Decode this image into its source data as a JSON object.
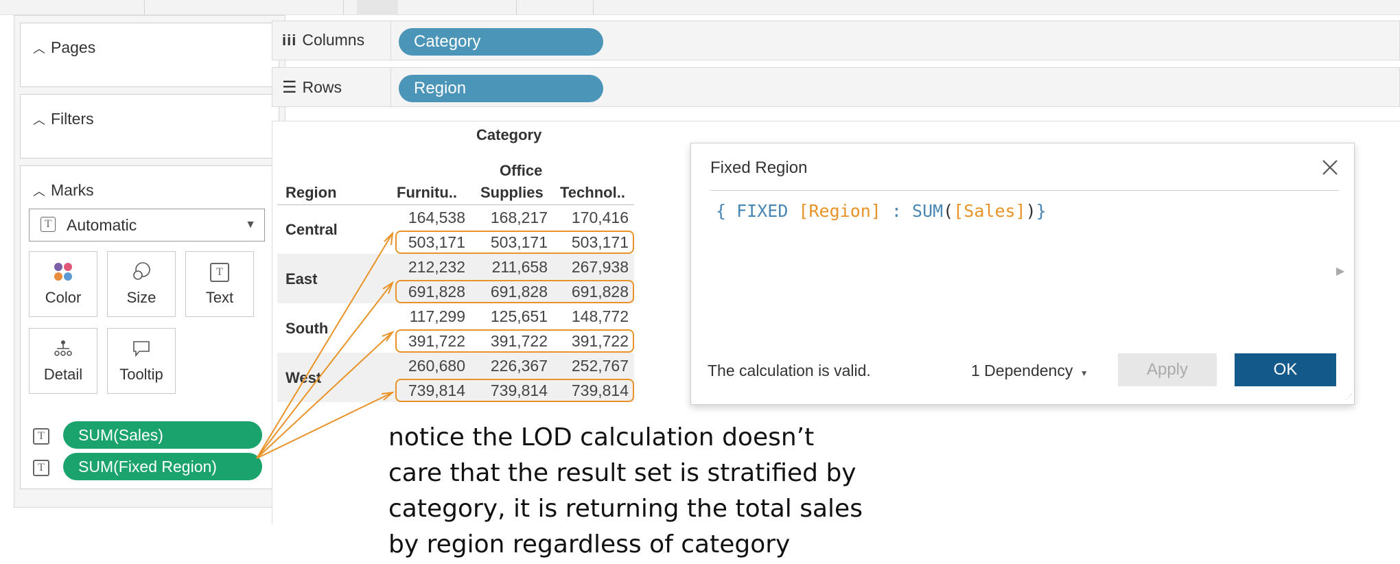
{
  "left": {
    "pages_label": "Pages",
    "filters_label": "Filters",
    "marks_label": "Marks",
    "mark_type": "Automatic",
    "mark_buttons": [
      "Color",
      "Size",
      "Text",
      "Detail",
      "Tooltip"
    ],
    "pills": [
      "SUM(Sales)",
      "SUM(Fixed Region)"
    ]
  },
  "shelves": {
    "columns_label": "Columns",
    "columns_pill": "Category",
    "rows_label": "Rows",
    "rows_pill": "Region"
  },
  "table": {
    "column_group": "Category",
    "row_header": "Region",
    "col_headers": [
      {
        "line1": "",
        "line2": "Furnitu.."
      },
      {
        "line1": "Office",
        "line2": "Supplies"
      },
      {
        "line1": "",
        "line2": "Technol.."
      }
    ],
    "rows": [
      {
        "region": "Central",
        "sales": [
          "164,538",
          "168,217",
          "170,416"
        ],
        "fixed": [
          "503,171",
          "503,171",
          "503,171"
        ]
      },
      {
        "region": "East",
        "sales": [
          "212,232",
          "211,658",
          "267,938"
        ],
        "fixed": [
          "691,828",
          "691,828",
          "691,828"
        ]
      },
      {
        "region": "South",
        "sales": [
          "117,299",
          "125,651",
          "148,772"
        ],
        "fixed": [
          "391,722",
          "391,722",
          "391,722"
        ]
      },
      {
        "region": "West",
        "sales": [
          "260,680",
          "226,367",
          "252,767"
        ],
        "fixed": [
          "739,814",
          "739,814",
          "739,814"
        ]
      }
    ]
  },
  "dialog": {
    "title": "Fixed Region",
    "formula": {
      "open": "{ ",
      "keyword": "FIXED",
      "dim": "[Region]",
      "colon": " : ",
      "func": "SUM",
      "paren_open": "(",
      "measure": "[Sales]",
      "paren_close": ")",
      "close": "}"
    },
    "status": "The calculation is valid.",
    "dependency": "1 Dependency",
    "apply": "Apply",
    "ok": "OK"
  },
  "annotation": [
    "notice the LOD calculation doesn’t",
    "care that the result set is stratified by",
    "category, it is returning the total sales",
    "by region regardless of category"
  ],
  "colors": {
    "pill_blue": "#4a95b8",
    "pill_green": "#1aa36c",
    "highlight_orange": "#e99227",
    "ok_button": "#135a8a",
    "code_blue": "#4a86b4",
    "code_orange": "#e99227"
  }
}
